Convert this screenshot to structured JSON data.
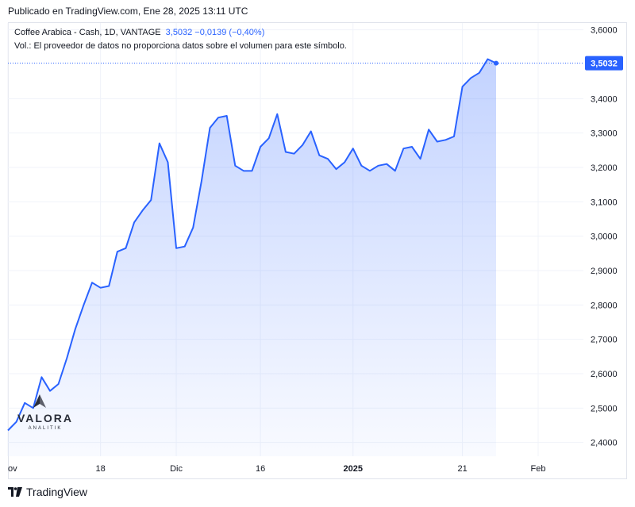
{
  "published": "Publicado en TradingView.com, Ene 28, 2025 13:11 UTC",
  "legend": {
    "symbol": "Coffee Arabica - Cash, 1D, VANTAGE",
    "last": "3,5032",
    "change": "−0,0139 (−0,40%)",
    "volume_note": "Vol.: El proveedor de datos no proporciona datos sobre el volumen para este símbolo."
  },
  "watermark": {
    "brand": "VALORA",
    "sub": "ANALITIK"
  },
  "footer": {
    "brand": "TradingView"
  },
  "colors": {
    "line": "#2962ff",
    "fill": "#2962ff",
    "grid": "#f0f3fa",
    "price_label_bg": "#2962ff"
  },
  "chart_data": {
    "type": "area",
    "title": "Coffee Arabica - Cash, 1D, VANTAGE",
    "xlabel": "",
    "ylabel": "",
    "ylim": [
      2.36,
      3.62
    ],
    "grid": true,
    "x_ticks": [
      {
        "label": "ov",
        "index": 0
      },
      {
        "label": "18",
        "index": 11
      },
      {
        "label": "Dic",
        "index": 20
      },
      {
        "label": "16",
        "index": 30
      },
      {
        "label": "2025",
        "index": 41
      },
      {
        "label": "21",
        "index": 54
      },
      {
        "label": "Feb",
        "index": 63
      }
    ],
    "y_ticks": [
      {
        "label": "3,6000",
        "value": 3.6
      },
      {
        "label": "3,4000",
        "value": 3.4
      },
      {
        "label": "3,3000",
        "value": 3.3
      },
      {
        "label": "3,2000",
        "value": 3.2
      },
      {
        "label": "3,1000",
        "value": 3.1
      },
      {
        "label": "3,0000",
        "value": 3.0
      },
      {
        "label": "2,9000",
        "value": 2.9
      },
      {
        "label": "2,8000",
        "value": 2.8
      },
      {
        "label": "2,7000",
        "value": 2.7
      },
      {
        "label": "2,6000",
        "value": 2.6
      },
      {
        "label": "2,5000",
        "value": 2.5
      },
      {
        "label": "2,4000",
        "value": 2.4
      }
    ],
    "current_price": {
      "label": "3,5032",
      "value": 3.5032
    },
    "series": [
      {
        "values": [
          2.435,
          2.46,
          2.515,
          2.5,
          2.59,
          2.55,
          2.57,
          2.645,
          2.73,
          2.8,
          2.865,
          2.85,
          2.855,
          2.955,
          2.965,
          3.04,
          3.075,
          3.105,
          3.27,
          3.215,
          2.965,
          2.97,
          3.025,
          3.16,
          3.315,
          3.345,
          3.35,
          3.205,
          3.19,
          3.19,
          3.26,
          3.285,
          3.355,
          3.245,
          3.24,
          3.265,
          3.305,
          3.235,
          3.225,
          3.195,
          3.215,
          3.255,
          3.205,
          3.19,
          3.205,
          3.21,
          3.19,
          3.255,
          3.26,
          3.225,
          3.31,
          3.275,
          3.28,
          3.29,
          3.435,
          3.46,
          3.475,
          3.515,
          3.5032
        ]
      }
    ]
  }
}
